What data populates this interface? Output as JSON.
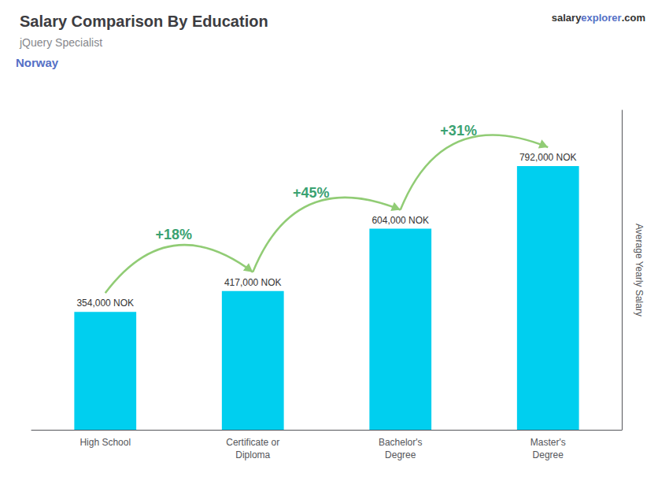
{
  "chart_data": {
    "type": "bar",
    "title": "Salary Comparison By Education",
    "subtitle": "jQuery Specialist",
    "ylabel": "Average Yearly Salary",
    "categories": [
      "High School",
      "Certificate or\nDiploma",
      "Bachelor's\nDegree",
      "Master's\nDegree"
    ],
    "values": [
      354000,
      417000,
      604000,
      792000
    ],
    "value_labels": [
      "354,000 NOK",
      "417,000 NOK",
      "604,000 NOK",
      "792,000 NOK"
    ],
    "data_labels": true,
    "color": "#00CFEF",
    "ylim": [
      0,
      960000
    ],
    "tick_labels": "x",
    "grid": false,
    "annotations": [
      {
        "text": "Norway"
      },
      {
        "text": "salary"
      },
      {
        "text": "explorer"
      },
      {
        "text": ".com"
      },
      {
        "text": "+18%",
        "from": "High School",
        "to": "Certificate or\nDiploma"
      },
      {
        "text": "+45%",
        "from": "Certificate or\nDiploma",
        "to": "Bachelor's\nDegree"
      },
      {
        "text": "+31%",
        "from": "Bachelor's\nDegree",
        "to": "Master's\nDegree"
      }
    ]
  }
}
